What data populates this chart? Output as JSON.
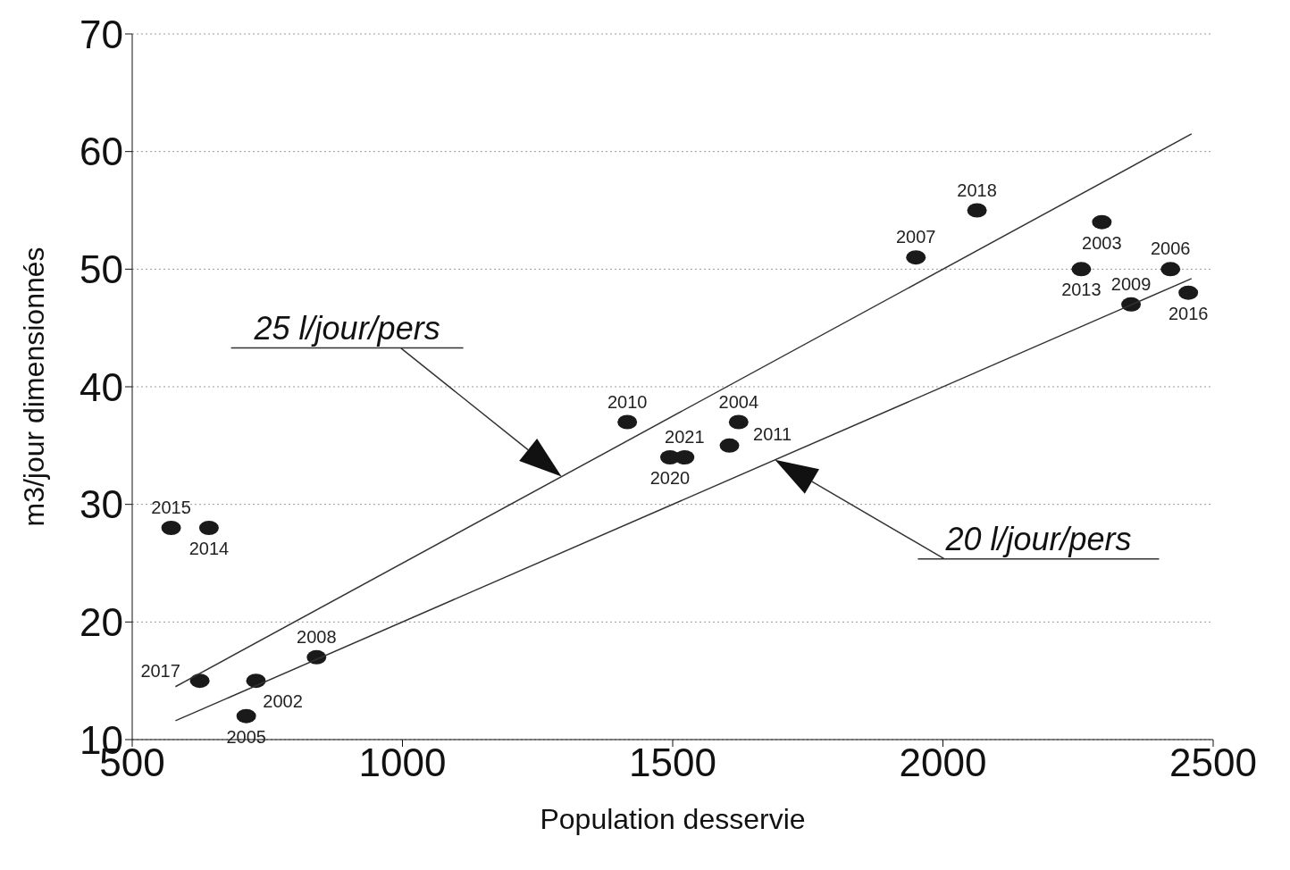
{
  "chart_data": {
    "type": "scatter",
    "xlabel": "Population desservie",
    "ylabel": "m3/jour dimensionnés",
    "xlim": [
      500,
      2500
    ],
    "xticks": [
      500,
      1000,
      1500,
      2000,
      2500
    ],
    "ylim": [
      10,
      70
    ],
    "yticks": [
      10,
      20,
      30,
      40,
      50,
      60,
      70
    ],
    "grid": "y",
    "series": [
      {
        "type": "scatter",
        "marker": "circle",
        "color": "#1a1a1a",
        "x": [
          572,
          642,
          625,
          729,
          711,
          841,
          1416,
          1495,
          1522,
          1605,
          1622,
          1950,
          2063,
          2294,
          2256,
          2421,
          2348,
          2454
        ],
        "values": [
          28,
          28,
          15,
          15,
          12,
          17,
          37,
          34,
          34,
          35,
          37,
          51,
          55,
          54,
          50,
          50,
          47,
          48
        ]
      },
      {
        "type": "line",
        "marker": "none",
        "color": "#333333",
        "x": [
          580,
          2460
        ],
        "values": [
          14.5,
          61.5
        ]
      },
      {
        "type": "line",
        "marker": "none",
        "color": "#333333",
        "x": [
          580,
          2460
        ],
        "values": [
          11.6,
          49.2
        ]
      }
    ],
    "annotations": [
      "25 l/jour/pers",
      "20 l/jour/pers",
      {
        "text": "2015",
        "x": 572,
        "y": 28
      },
      {
        "text": "2014",
        "x": 642,
        "y": 28
      },
      {
        "text": "2017",
        "x": 625,
        "y": 15
      },
      {
        "text": "2002",
        "x": 729,
        "y": 15
      },
      {
        "text": "2005",
        "x": 711,
        "y": 12
      },
      {
        "text": "2008",
        "x": 841,
        "y": 17
      },
      {
        "text": "2010",
        "x": 1416,
        "y": 37
      },
      {
        "text": "2020",
        "x": 1495,
        "y": 34
      },
      {
        "text": "2021",
        "x": 1522,
        "y": 34
      },
      {
        "text": "2011",
        "x": 1605,
        "y": 35
      },
      {
        "text": "2004",
        "x": 1622,
        "y": 37
      },
      {
        "text": "2007",
        "x": 1950,
        "y": 51
      },
      {
        "text": "2018",
        "x": 2063,
        "y": 55
      },
      {
        "text": "2003",
        "x": 2294,
        "y": 54
      },
      {
        "text": "2013",
        "x": 2256,
        "y": 50
      },
      {
        "text": "2006",
        "x": 2421,
        "y": 50
      },
      {
        "text": "2009",
        "x": 2348,
        "y": 47
      },
      {
        "text": "2016",
        "x": 2454,
        "y": 48
      }
    ]
  }
}
